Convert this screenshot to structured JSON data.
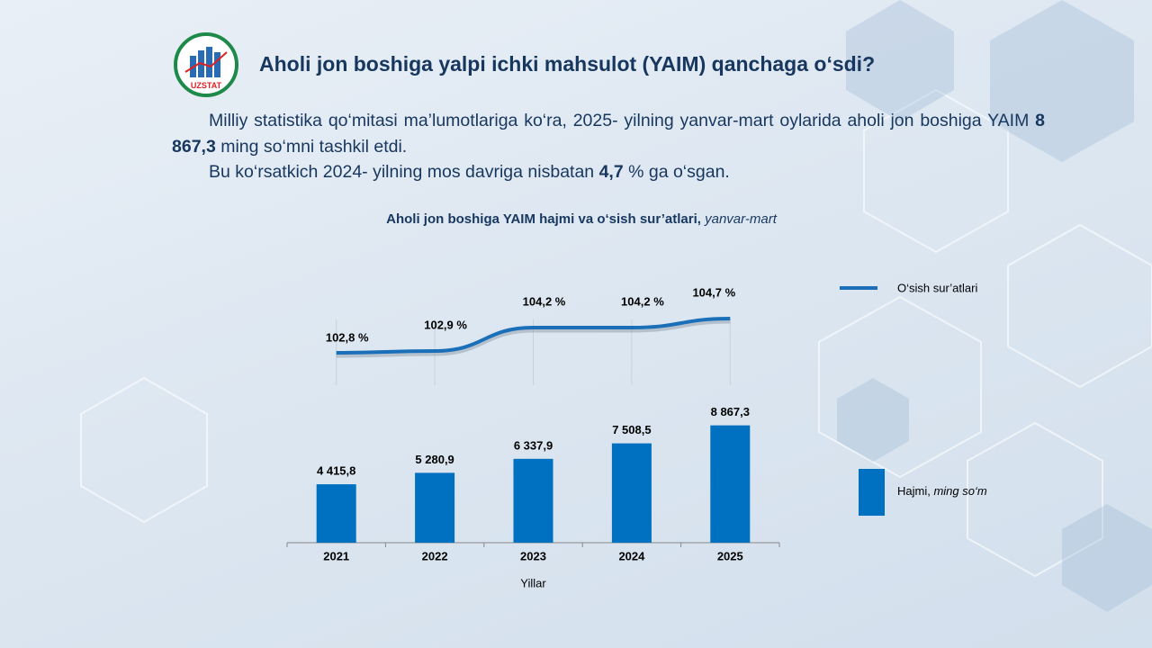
{
  "slide": {
    "logo_text": "UZSTAT",
    "title": "Aholi jon boshiga yalpi ichki mahsulot (YAIM) qanchaga o‘sdi?",
    "paragraphs": [
      [
        {
          "text": "Milliy statistika qo‘mitasi ma’lumotlariga ko‘ra, 2025- yilning yanvar-mart oylarida aholi jon boshiga YAIM "
        },
        {
          "text": "8 867,3",
          "bold": true
        },
        {
          "text": " ming so‘mni tashkil etdi."
        }
      ],
      [
        {
          "text": "Bu ko‘rsatkich 2024- yilning mos davriga nisbatan "
        },
        {
          "text": "4,7",
          "bold": true
        },
        {
          "text": " % ga o‘sgan."
        }
      ]
    ]
  },
  "chart_data": {
    "type": "combo",
    "title": "Aholi jon boshiga YAIM hajmi va o‘sish sur’atlari,",
    "subtitle": "yanvar-mart",
    "xlabel": "Yillar",
    "categories": [
      "2021",
      "2022",
      "2023",
      "2024",
      "2025"
    ],
    "ylim": [
      0,
      10000
    ],
    "y2lim": [
      101,
      106
    ],
    "series": [
      {
        "name": "Hajmi,",
        "unit": "ming so‘m",
        "kind": "bar",
        "color": "#0070c0",
        "values": [
          4415.8,
          5280.9,
          6337.9,
          7508.5,
          8867.3
        ],
        "value_labels": [
          "4 415,8",
          "5 280,9",
          "6 337,9",
          "7 508,5",
          "8 867,3"
        ]
      },
      {
        "name": "O‘sish sur’atlari",
        "kind": "line",
        "axis": "y2",
        "color": "#1a6fb8",
        "values": [
          102.8,
          102.9,
          104.2,
          104.2,
          104.7
        ],
        "value_labels": [
          "102,8 %",
          "102,9 %",
          "104,2 %",
          "104,2 %",
          "104,7 %"
        ]
      }
    ]
  }
}
